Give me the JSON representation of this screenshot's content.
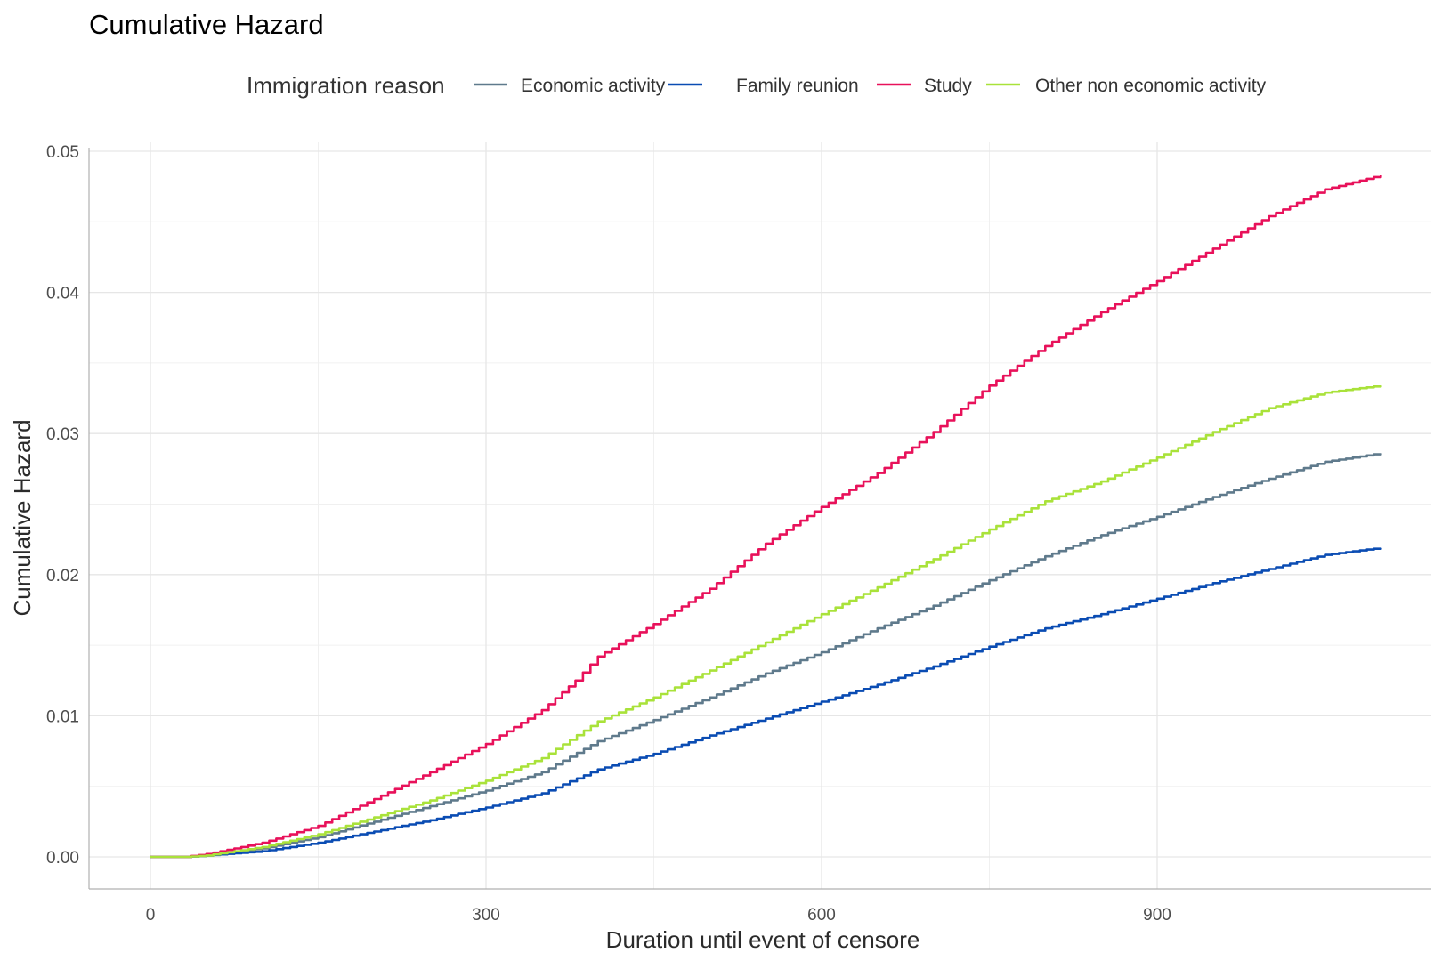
{
  "chart_data": {
    "type": "line",
    "title": "Cumulative Hazard",
    "xlabel": "Duration until event of censore",
    "ylabel": "Cumulative Hazard",
    "xlim": [
      0,
      1100
    ],
    "ylim": [
      0,
      0.05
    ],
    "x_ticks": [
      0,
      300,
      600,
      900
    ],
    "x_tick_labels": [
      "0",
      "300",
      "600",
      "900"
    ],
    "y_ticks": [
      0,
      0.01,
      0.02,
      0.03,
      0.04,
      0.05
    ],
    "y_tick_labels": [
      "0.00",
      "0.01",
      "0.02",
      "0.03",
      "0.04",
      "0.05"
    ],
    "grid": true,
    "legend": {
      "title": "Immigration reason",
      "position": "top"
    },
    "series": [
      {
        "name": "Economic activity",
        "color": "#5f7a8c",
        "points": [
          [
            0,
            0
          ],
          [
            30,
            0
          ],
          [
            50,
            0.0001
          ],
          [
            100,
            0.0006
          ],
          [
            150,
            0.0014
          ],
          [
            200,
            0.0025
          ],
          [
            250,
            0.0036
          ],
          [
            300,
            0.0047
          ],
          [
            350,
            0.006
          ],
          [
            400,
            0.0082
          ],
          [
            450,
            0.0097
          ],
          [
            500,
            0.0113
          ],
          [
            550,
            0.013
          ],
          [
            600,
            0.0145
          ],
          [
            650,
            0.0162
          ],
          [
            700,
            0.0178
          ],
          [
            750,
            0.0196
          ],
          [
            800,
            0.0213
          ],
          [
            850,
            0.0228
          ],
          [
            900,
            0.0241
          ],
          [
            950,
            0.0255
          ],
          [
            1000,
            0.0268
          ],
          [
            1050,
            0.028
          ],
          [
            1100,
            0.0286
          ]
        ]
      },
      {
        "name": "Family reunion",
        "color": "#0a4cb3",
        "points": [
          [
            0,
            0
          ],
          [
            30,
            0
          ],
          [
            50,
            0.0001
          ],
          [
            100,
            0.0004
          ],
          [
            150,
            0.001
          ],
          [
            200,
            0.0018
          ],
          [
            250,
            0.0026
          ],
          [
            300,
            0.0035
          ],
          [
            350,
            0.0045
          ],
          [
            400,
            0.0062
          ],
          [
            450,
            0.0073
          ],
          [
            500,
            0.0086
          ],
          [
            550,
            0.0098
          ],
          [
            600,
            0.011
          ],
          [
            650,
            0.0122
          ],
          [
            700,
            0.0135
          ],
          [
            750,
            0.0149
          ],
          [
            800,
            0.0162
          ],
          [
            850,
            0.0172
          ],
          [
            900,
            0.0183
          ],
          [
            950,
            0.0194
          ],
          [
            1000,
            0.0204
          ],
          [
            1050,
            0.0214
          ],
          [
            1100,
            0.0219
          ]
        ]
      },
      {
        "name": "Study",
        "color": "#e8115a",
        "points": [
          [
            0,
            0
          ],
          [
            30,
            0
          ],
          [
            50,
            0.0002
          ],
          [
            100,
            0.001
          ],
          [
            150,
            0.0022
          ],
          [
            200,
            0.0041
          ],
          [
            250,
            0.006
          ],
          [
            300,
            0.008
          ],
          [
            350,
            0.0104
          ],
          [
            380,
            0.0125
          ],
          [
            400,
            0.0142
          ],
          [
            450,
            0.0165
          ],
          [
            500,
            0.019
          ],
          [
            550,
            0.0222
          ],
          [
            600,
            0.0248
          ],
          [
            650,
            0.0272
          ],
          [
            700,
            0.0301
          ],
          [
            750,
            0.0334
          ],
          [
            800,
            0.0362
          ],
          [
            850,
            0.0386
          ],
          [
            900,
            0.0408
          ],
          [
            950,
            0.0431
          ],
          [
            1000,
            0.0454
          ],
          [
            1050,
            0.0473
          ],
          [
            1100,
            0.0483
          ]
        ]
      },
      {
        "name": "Other non economic activity",
        "color": "#a9e23a",
        "points": [
          [
            0,
            0
          ],
          [
            30,
            0
          ],
          [
            50,
            0.0001
          ],
          [
            100,
            0.0007
          ],
          [
            150,
            0.0016
          ],
          [
            200,
            0.0028
          ],
          [
            250,
            0.004
          ],
          [
            300,
            0.0054
          ],
          [
            350,
            0.007
          ],
          [
            400,
            0.0096
          ],
          [
            450,
            0.0113
          ],
          [
            500,
            0.0132
          ],
          [
            550,
            0.0152
          ],
          [
            600,
            0.0172
          ],
          [
            650,
            0.0191
          ],
          [
            700,
            0.0211
          ],
          [
            750,
            0.0232
          ],
          [
            800,
            0.0252
          ],
          [
            850,
            0.0266
          ],
          [
            900,
            0.0283
          ],
          [
            950,
            0.0301
          ],
          [
            1000,
            0.0318
          ],
          [
            1050,
            0.0329
          ],
          [
            1100,
            0.0334
          ]
        ]
      }
    ]
  }
}
